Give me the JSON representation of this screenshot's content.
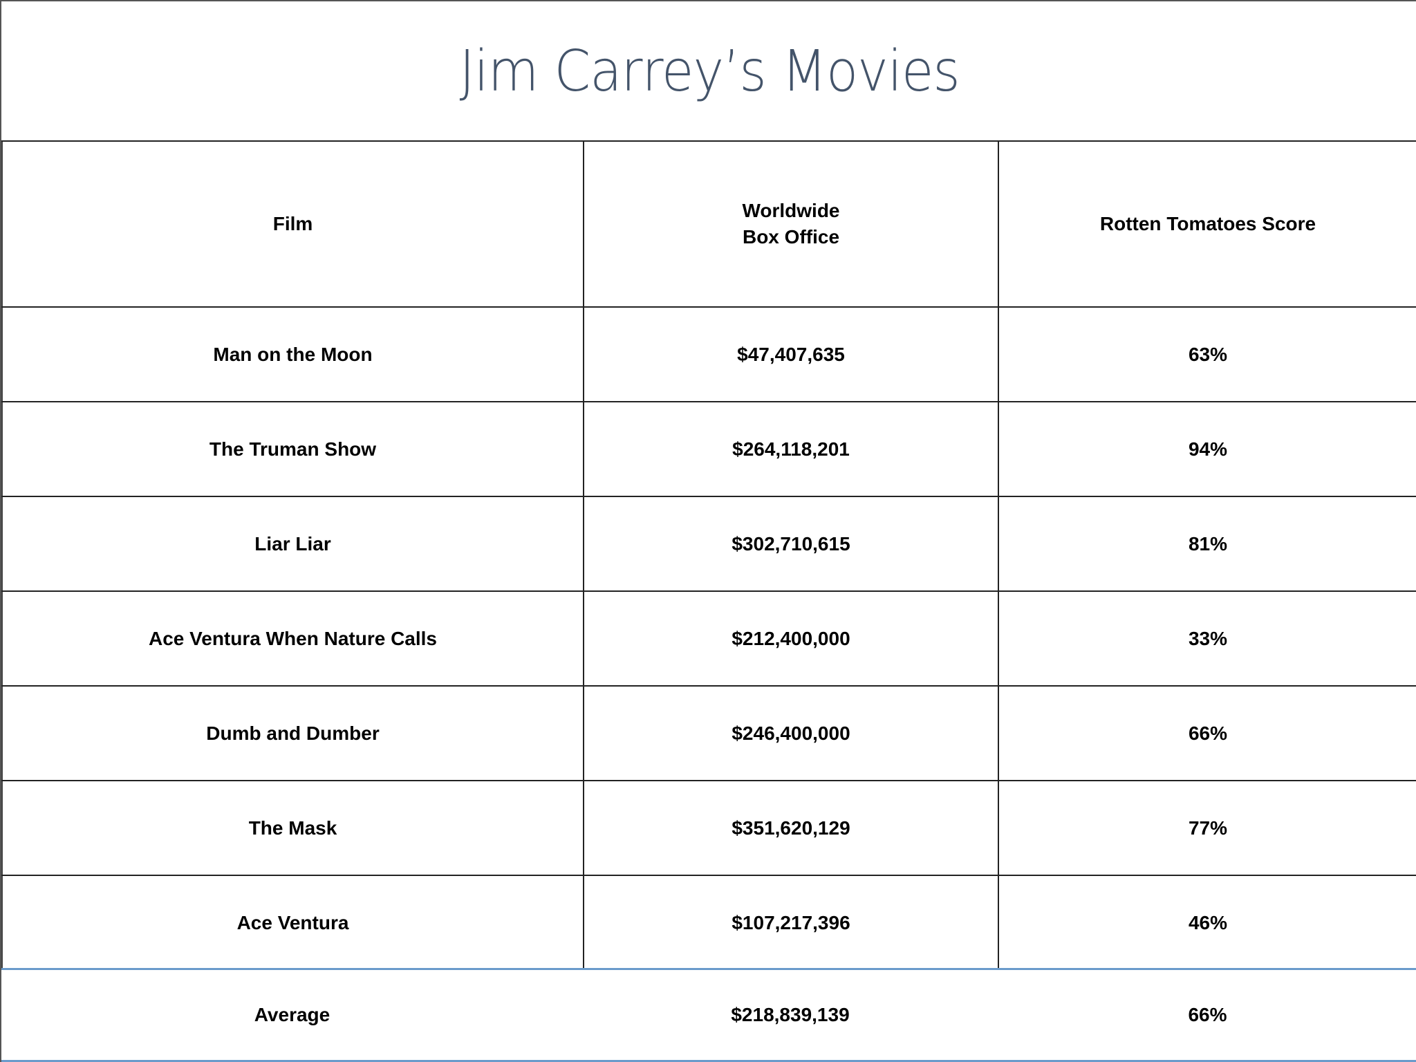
{
  "document": {
    "title": "Jim Carrey’s Movies"
  },
  "table": {
    "headers": {
      "film": "Film",
      "box_office_line1": "Worldwide",
      "box_office_line2": "Box Office",
      "rt_score": "Rotten Tomatoes Score"
    },
    "rows": [
      {
        "film": "Man on the Moon",
        "box_office": "$47,407,635",
        "rt_score": "63%"
      },
      {
        "film": "The Truman Show",
        "box_office": "$264,118,201",
        "rt_score": "94%"
      },
      {
        "film": "Liar Liar",
        "box_office": "$302,710,615",
        "rt_score": "81%"
      },
      {
        "film": "Ace Ventura When Nature Calls",
        "box_office": "$212,400,000",
        "rt_score": "33%"
      },
      {
        "film": "Dumb and Dumber",
        "box_office": "$246,400,000",
        "rt_score": "66%"
      },
      {
        "film": "The Mask",
        "box_office": "$351,620,129",
        "rt_score": "77%"
      },
      {
        "film": "Ace Ventura",
        "box_office": "$107,217,396",
        "rt_score": "46%"
      }
    ],
    "summary": {
      "label": "Average",
      "box_office": "$218,839,139",
      "rt_score": "66%"
    }
  },
  "colors": {
    "title": "#44546A",
    "summary_rule": "#6A9BCB",
    "grid": "#222222"
  }
}
